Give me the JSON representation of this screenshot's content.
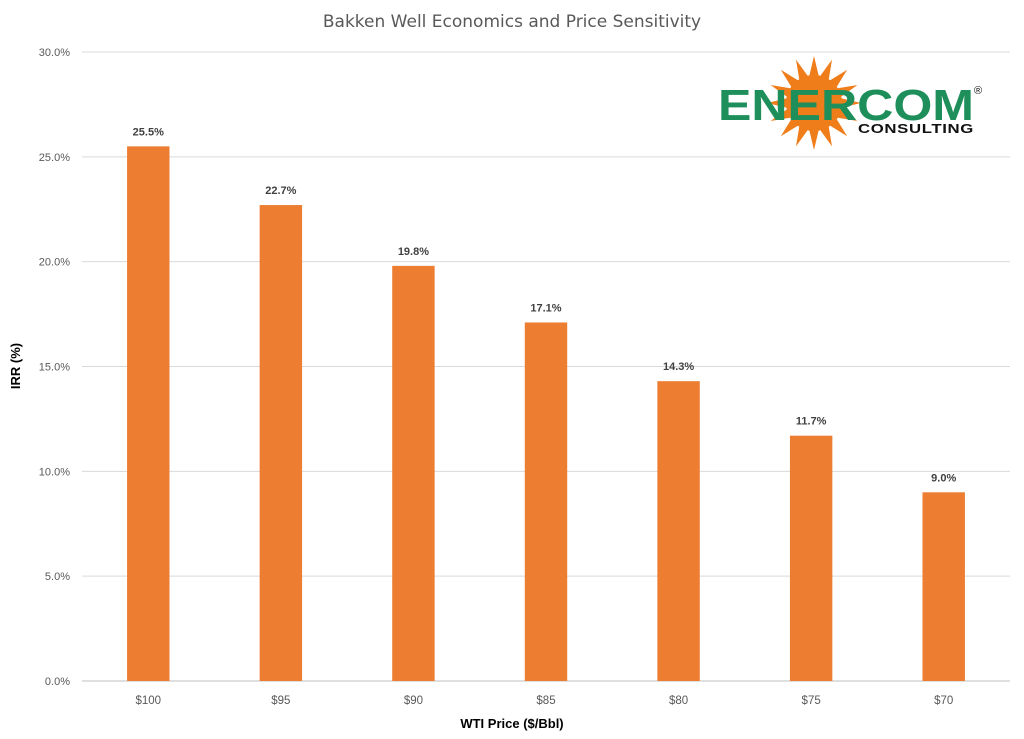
{
  "chart_data": {
    "type": "bar",
    "title": "Bakken Well Economics and Price Sensitivity",
    "xlabel": "WTI Price ($/Bbl)",
    "ylabel": "IRR (%)",
    "categories": [
      "$100",
      "$95",
      "$90",
      "$85",
      "$80",
      "$75",
      "$70"
    ],
    "values": [
      25.5,
      22.7,
      19.8,
      17.1,
      14.3,
      11.7,
      9.0
    ],
    "data_labels": [
      "25.5%",
      "22.7%",
      "19.8%",
      "17.1%",
      "14.3%",
      "11.7%",
      "9.0%"
    ],
    "ylim": [
      0,
      30
    ],
    "yticks": [
      0,
      5,
      10,
      15,
      20,
      25,
      30
    ],
    "ytick_labels": [
      "0.0%",
      "5.0%",
      "10.0%",
      "15.0%",
      "20.0%",
      "25.0%",
      "30.0%"
    ],
    "grid": true,
    "legend": "none",
    "bar_color": "#ed7d31"
  },
  "logo": {
    "name": "sun-logo-icon",
    "main_before": "EN",
    "main_star_letter": "E",
    "main_after": "RCOM",
    "registered": "®",
    "sub": "CONSULTING",
    "colors": {
      "text": "#1e8f5a",
      "sun": "#ef7d1a",
      "sub_text": "#111111"
    }
  }
}
